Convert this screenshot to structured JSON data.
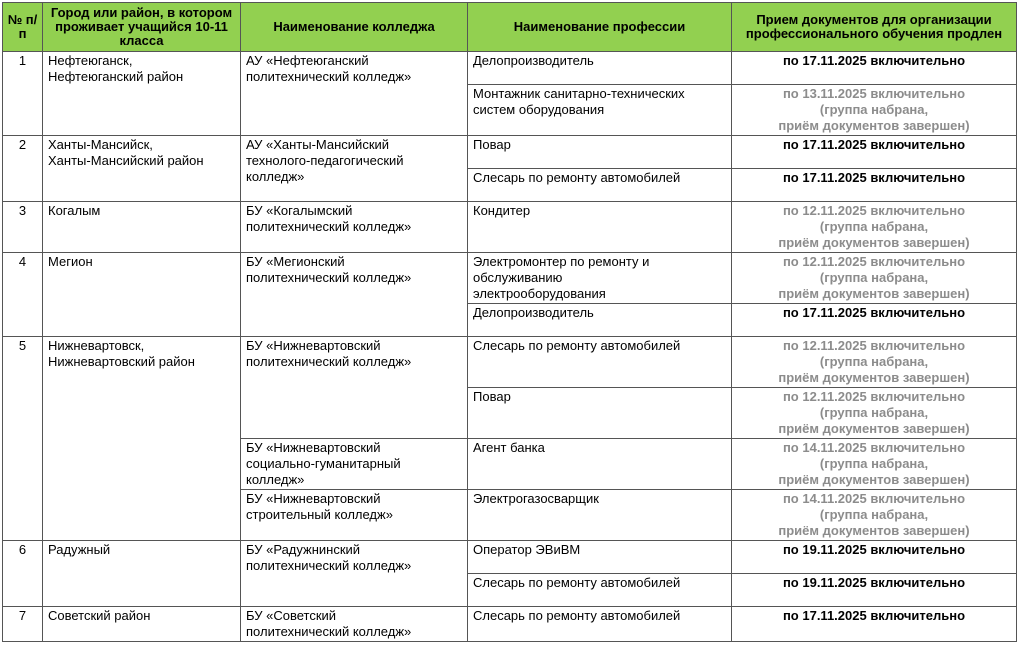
{
  "table": {
    "headers": [
      "№ п/п",
      "Город или район, в котором проживает учащийся 10-11 класса",
      "Наименование колледжа",
      "Наименование профессии",
      "Прием документов для организации профессионального обучения продлен"
    ],
    "rows": [
      {
        "number": "1",
        "city": "Нефтеюганск,\nНефтеюганский район",
        "colleges": [
          {
            "name": "АУ «Нефтеюганский\nполитехнический колледж»",
            "professions": [
              {
                "name": "Делопроизводитель",
                "deadline": "по 17.11.2025 включительно"
              },
              {
                "name": "Монтажник санитарно-технических\nсистем оборудования",
                "deadline": "по 13.11.2025 включительно",
                "note": "(группа набрана,\nприём документов завершен)"
              }
            ]
          }
        ]
      },
      {
        "number": "2",
        "city": "Ханты-Мансийск,\nХанты-Мансийский район",
        "colleges": [
          {
            "name": "АУ «Ханты-Мансийский\nтехнолого-педагогический\nколледж»",
            "professions": [
              {
                "name": "Повар",
                "deadline": "по 17.11.2025 включительно"
              },
              {
                "name": "Слесарь по ремонту автомобилей",
                "deadline": "по 17.11.2025 включительно"
              }
            ]
          }
        ]
      },
      {
        "number": "3",
        "city": "Когалым",
        "colleges": [
          {
            "name": "БУ «Когалымский\nполитехнический колледж»",
            "professions": [
              {
                "name": "Кондитер",
                "deadline": "по 12.11.2025 включительно",
                "note": "(группа набрана,\nприём документов завершен)"
              }
            ]
          }
        ]
      },
      {
        "number": "4",
        "city": "Мегион",
        "colleges": [
          {
            "name": "БУ «Мегионский\nполитехнический колледж»",
            "professions": [
              {
                "name": "Электромонтер по ремонту и\nобслуживанию\nэлектрооборудования",
                "deadline": "по 12.11.2025 включительно",
                "note": "(группа набрана,\nприём документов завершен)"
              },
              {
                "name": "Делопроизводитель",
                "deadline": "по 17.11.2025 включительно"
              }
            ]
          }
        ]
      },
      {
        "number": "5",
        "city": "Нижневартовск,\nНижневартовский район",
        "colleges": [
          {
            "name": "БУ «Нижневартовский\nполитехнический колледж»",
            "professions": [
              {
                "name": "Слесарь по ремонту автомобилей",
                "deadline": "по 12.11.2025 включительно",
                "note": "(группа набрана,\nприём документов завершен)"
              },
              {
                "name": "Повар",
                "deadline": "по 12.11.2025 включительно",
                "note": "(группа набрана,\nприём документов завершен)"
              }
            ]
          },
          {
            "name": "БУ «Нижневартовский\nсоциально-гуманитарный\nколледж»",
            "professions": [
              {
                "name": "Агент банка",
                "deadline": "по 14.11.2025 включительно",
                "note": "(группа набрана,\nприём документов завершен)"
              }
            ]
          },
          {
            "name": "БУ «Нижневартовский\nстроительный колледж»",
            "professions": [
              {
                "name": "Электрогазосварщик",
                "deadline": "по 14.11.2025 включительно",
                "note": "(группа набрана,\nприём документов завершен)"
              }
            ]
          }
        ]
      },
      {
        "number": "6",
        "city": "Радужный",
        "colleges": [
          {
            "name": "БУ «Радужнинский\nполитехнический колледж»",
            "professions": [
              {
                "name": "Оператор ЭВиВМ",
                "deadline": "по 19.11.2025 включительно"
              },
              {
                "name": "Слесарь по ремонту автомобилей",
                "deadline": "по 19.11.2025 включительно"
              }
            ]
          }
        ]
      },
      {
        "number": "7",
        "city": "Советский район",
        "colleges": [
          {
            "name": "БУ «Советский\nполитехнический колледж»",
            "professions": [
              {
                "name": "Слесарь по ремонту автомобилей",
                "deadline": "по 17.11.2025 включительно"
              }
            ]
          }
        ]
      }
    ]
  }
}
